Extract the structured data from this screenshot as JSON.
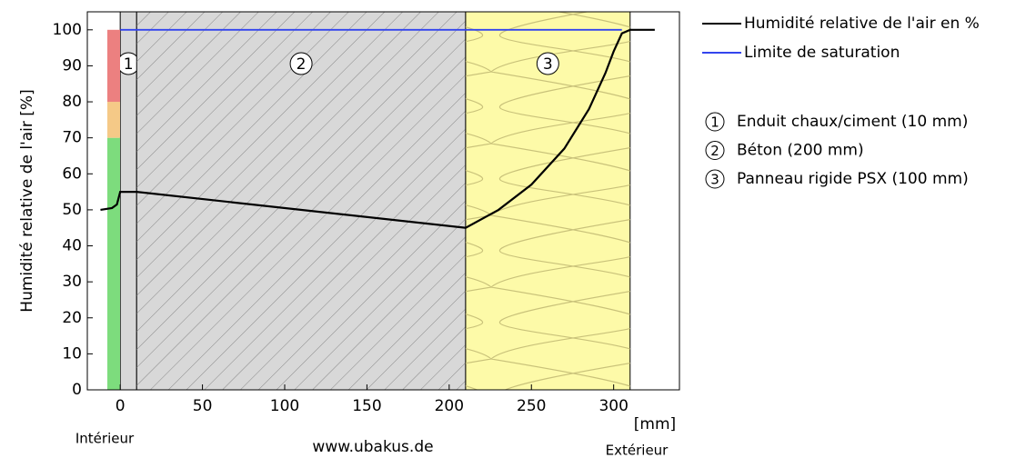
{
  "chart_data": {
    "type": "line",
    "y_label": "Humidité relative de l'air [%]",
    "x_unit": "[mm]",
    "left_label": "Intérieur",
    "right_label": "Extérieur",
    "source": "www.ubakus.de",
    "xlim": [
      -20,
      340
    ],
    "ylim": [
      0,
      105
    ],
    "xticks": [
      0,
      50,
      100,
      150,
      200,
      250,
      300
    ],
    "yticks": [
      0,
      10,
      20,
      30,
      40,
      50,
      60,
      70,
      80,
      90,
      100
    ],
    "series": [
      {
        "name": "Humidité relative de l'air en %",
        "color": "#000000",
        "x": [
          -12,
          -5,
          -2,
          0,
          10,
          210,
          230,
          250,
          270,
          285,
          295,
          300,
          305,
          310,
          325
        ],
        "values": [
          50,
          50.5,
          51.5,
          55,
          55,
          45,
          50,
          57,
          67,
          78,
          88,
          94,
          99,
          100,
          100
        ]
      },
      {
        "name": "Limite de saturation",
        "color": "#3344ee",
        "x": [
          0,
          305
        ],
        "values": [
          100,
          100
        ]
      }
    ],
    "layers": [
      {
        "number": "1",
        "label": "Enduit chaux/ciment (10 mm)",
        "start": 0,
        "end": 10,
        "color": "#d8d8d8"
      },
      {
        "number": "2",
        "label": "Béton (200 mm)",
        "start": 10,
        "end": 210,
        "color": "#d8d8d8"
      },
      {
        "number": "3",
        "label": "Panneau rigide PSX (100 mm)",
        "start": 210,
        "end": 310,
        "color": "#fdfaa8"
      }
    ],
    "comfort_zones": [
      {
        "from": 0,
        "to": 70,
        "color": "#7ddc7d"
      },
      {
        "from": 70,
        "to": 80,
        "color": "#f5c987"
      },
      {
        "from": 80,
        "to": 100,
        "color": "#ec8080"
      }
    ]
  }
}
